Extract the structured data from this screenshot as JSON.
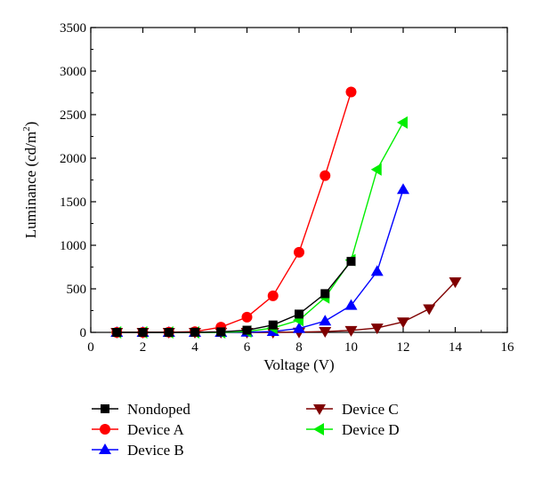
{
  "chart_data": {
    "type": "line",
    "title": "",
    "xlabel": "Voltage (V)",
    "ylabel": "Luminance (cd/m²)",
    "ylabel_parts": {
      "main": "Luminance (cd/m",
      "sup": "2",
      "tail": ")"
    },
    "xlim": [
      0,
      16
    ],
    "ylim": [
      0,
      3500
    ],
    "xticks": [
      0,
      2,
      4,
      6,
      8,
      10,
      12,
      14,
      16
    ],
    "yticks": [
      0,
      500,
      1000,
      1500,
      2000,
      2500,
      3000,
      3500
    ],
    "grid": false,
    "legend_position": "bottom",
    "series": [
      {
        "name": "Nondoped",
        "color": "#000000",
        "marker": "square",
        "x": [
          1,
          2,
          3,
          4,
          5,
          6,
          7,
          8,
          9,
          10
        ],
        "y": [
          0,
          0,
          0,
          2,
          6,
          25,
          85,
          210,
          445,
          815
        ]
      },
      {
        "name": "Device A",
        "color": "#ff0000",
        "marker": "circle",
        "x": [
          1,
          2,
          3,
          4,
          5,
          6,
          7,
          8,
          9,
          10
        ],
        "y": [
          0,
          0,
          2,
          8,
          60,
          175,
          420,
          920,
          1800,
          2760
        ]
      },
      {
        "name": "Device B",
        "color": "#0000ff",
        "marker": "triangle-up",
        "x": [
          1,
          2,
          3,
          4,
          5,
          6,
          7,
          8,
          9,
          10,
          11,
          12
        ],
        "y": [
          0,
          0,
          0,
          0,
          0,
          2,
          10,
          45,
          130,
          310,
          700,
          1640
        ]
      },
      {
        "name": "Device C",
        "color": "#7f0000",
        "marker": "triangle-down",
        "x": [
          1,
          2,
          3,
          4,
          5,
          6,
          7,
          8,
          9,
          10,
          11,
          12,
          13,
          14
        ],
        "y": [
          0,
          0,
          0,
          0,
          0,
          0,
          0,
          3,
          10,
          22,
          50,
          120,
          270,
          580
        ]
      },
      {
        "name": "Device D",
        "color": "#00ee00",
        "marker": "triangle-left",
        "x": [
          1,
          2,
          3,
          4,
          5,
          6,
          7,
          8,
          9,
          10,
          11,
          12
        ],
        "y": [
          0,
          0,
          0,
          0,
          0,
          10,
          50,
          140,
          400,
          830,
          1870,
          2410
        ]
      }
    ],
    "legend": {
      "columns": [
        [
          "Nondoped",
          "Device A",
          "Device B"
        ],
        [
          "Device C",
          "Device D"
        ]
      ]
    }
  }
}
